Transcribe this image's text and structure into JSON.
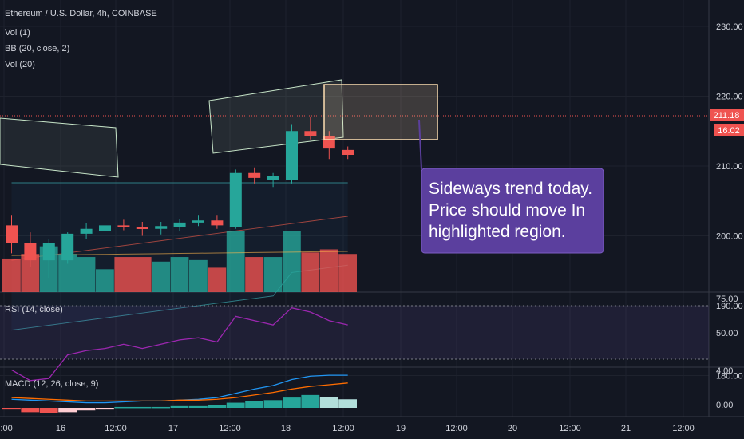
{
  "chart_data": [
    {
      "type": "candlestick",
      "title": "Ethereum / U.S. Dollar, 4h, COINBASE",
      "indicators": [
        "Vol (1)",
        "BB (20, close, 2)",
        "Vol (20)"
      ],
      "price_axis": {
        "ticks": [
          "230.00",
          "220.00",
          "210.00",
          "200.00",
          "190.00",
          "180.00"
        ],
        "ylim": [
          176,
          234
        ]
      },
      "last_price": "211.18",
      "countdown": "16:02",
      "candles": [
        {
          "o": 201.5,
          "h": 203.0,
          "l": 197.5,
          "c": 199.0
        },
        {
          "o": 199.0,
          "h": 200.5,
          "l": 195.5,
          "c": 196.5
        },
        {
          "o": 196.5,
          "h": 199.5,
          "l": 194.0,
          "c": 199.0
        },
        {
          "o": 196.5,
          "h": 200.5,
          "l": 196.0,
          "c": 200.3
        },
        {
          "o": 200.3,
          "h": 201.8,
          "l": 199.5,
          "c": 201.0
        },
        {
          "o": 200.7,
          "h": 202.2,
          "l": 200.2,
          "c": 201.5
        },
        {
          "o": 201.5,
          "h": 202.3,
          "l": 200.8,
          "c": 201.2
        },
        {
          "o": 201.2,
          "h": 202.0,
          "l": 200.0,
          "c": 201.0
        },
        {
          "o": 201.0,
          "h": 202.0,
          "l": 200.2,
          "c": 201.4
        },
        {
          "o": 201.3,
          "h": 202.4,
          "l": 200.7,
          "c": 201.9
        },
        {
          "o": 201.9,
          "h": 203.0,
          "l": 201.4,
          "c": 202.2
        },
        {
          "o": 202.2,
          "h": 203.0,
          "l": 201.0,
          "c": 201.5
        },
        {
          "o": 201.3,
          "h": 209.5,
          "l": 201.0,
          "c": 209.0
        },
        {
          "o": 209.0,
          "h": 209.8,
          "l": 207.5,
          "c": 208.3
        },
        {
          "o": 208.0,
          "h": 209.0,
          "l": 207.0,
          "c": 208.6
        },
        {
          "o": 208.0,
          "h": 216.0,
          "l": 207.5,
          "c": 215.0
        },
        {
          "o": 215.0,
          "h": 217.0,
          "l": 213.8,
          "c": 214.3
        },
        {
          "o": 214.3,
          "h": 215.0,
          "l": 211.0,
          "c": 212.5
        },
        {
          "o": 212.3,
          "h": 212.8,
          "l": 211.0,
          "c": 211.6
        }
      ],
      "volume": [
        22,
        25,
        30,
        25,
        23,
        15,
        23,
        23,
        20,
        23,
        21,
        16,
        40,
        23,
        23,
        40,
        26,
        28,
        25
      ],
      "volume_ylim": [
        0,
        45
      ]
    },
    {
      "type": "line",
      "title": "RSI (14, close)",
      "ticks": [
        "75.00",
        "50.00"
      ],
      "ylim": [
        25,
        80
      ],
      "values": [
        45,
        40,
        41,
        52,
        54,
        55,
        57,
        55,
        57,
        59,
        60,
        58,
        70,
        68,
        66,
        74,
        72,
        68,
        66
      ]
    },
    {
      "type": "bar",
      "title": "MACD (12, 26, close, 9)",
      "ticks": [
        "4.00",
        "0.00"
      ],
      "ylim": [
        -1,
        5
      ],
      "histogram": [
        -0.2,
        -0.5,
        -0.6,
        -0.5,
        -0.3,
        -0.2,
        0.1,
        0.1,
        0.1,
        0.2,
        0.2,
        0.3,
        0.6,
        0.8,
        0.9,
        1.2,
        1.5,
        1.3,
        1.0
      ],
      "macd_line": [
        1.0,
        0.9,
        0.8,
        0.7,
        0.6,
        0.6,
        0.7,
        0.8,
        0.8,
        0.9,
        1.0,
        1.2,
        1.7,
        2.2,
        2.6,
        3.3,
        3.7,
        3.8,
        3.8
      ],
      "signal_line": [
        1.2,
        1.1,
        1.0,
        0.9,
        0.8,
        0.8,
        0.8,
        0.8,
        0.8,
        0.9,
        0.9,
        1.0,
        1.2,
        1.5,
        1.8,
        2.2,
        2.5,
        2.7,
        2.9
      ]
    }
  ],
  "time_axis": [
    "2:00",
    "16",
    "12:00",
    "17",
    "12:00",
    "18",
    "12:00",
    "19",
    "12:00",
    "20",
    "12:00",
    "21",
    "12:00"
  ],
  "callout": {
    "line1": "Sideways trend today.",
    "line2": "Price should move In",
    "line3": "highlighted region."
  },
  "colors": {
    "background": "#131722",
    "up": "#26a69a",
    "down": "#ef5350",
    "callout_bg": "#5b3f9e",
    "highlight_box": "#ffe0b2",
    "rsi_line": "#9c27b0",
    "macd_line": "#2196f3",
    "signal_line": "#ff6d00"
  }
}
